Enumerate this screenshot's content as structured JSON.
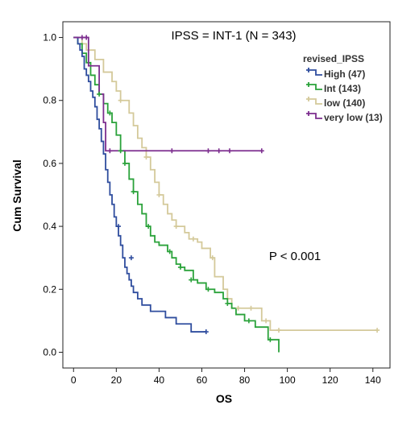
{
  "chart_data": {
    "type": "line",
    "title": "IPSS = INT-1 (N = 343)",
    "xlabel": "OS",
    "ylabel": "Cum Survival",
    "xlim": [
      -5,
      148
    ],
    "ylim": [
      -0.05,
      1.05
    ],
    "x_ticks": [
      "0",
      "20",
      "40",
      "60",
      "80",
      "100",
      "120",
      "140"
    ],
    "y_ticks": [
      "0.0",
      "0.2",
      "0.4",
      "0.6",
      "0.8",
      "1.0"
    ],
    "x_tick_values": [
      0,
      20,
      40,
      60,
      80,
      100,
      120,
      140
    ],
    "y_tick_values": [
      0.0,
      0.2,
      0.4,
      0.6,
      0.8,
      1.0
    ],
    "legend_title": "revised_IPSS",
    "legend_position": "top-right",
    "annotation": "P < 0.001",
    "grid": false,
    "series": [
      {
        "name": "High (47)",
        "color": "#2f4d9e",
        "points": [
          [
            0,
            1.0
          ],
          [
            2,
            0.98
          ],
          [
            3,
            0.96
          ],
          [
            4,
            0.94
          ],
          [
            5,
            0.9
          ],
          [
            6,
            0.88
          ],
          [
            7,
            0.86
          ],
          [
            8,
            0.83
          ],
          [
            9,
            0.81
          ],
          [
            10,
            0.78
          ],
          [
            11,
            0.74
          ],
          [
            12,
            0.71
          ],
          [
            13,
            0.67
          ],
          [
            14,
            0.63
          ],
          [
            15,
            0.58
          ],
          [
            16,
            0.54
          ],
          [
            17,
            0.5
          ],
          [
            18,
            0.47
          ],
          [
            19,
            0.43
          ],
          [
            20,
            0.4
          ],
          [
            21,
            0.37
          ],
          [
            22,
            0.34
          ],
          [
            23,
            0.3
          ],
          [
            24,
            0.27
          ],
          [
            25,
            0.25
          ],
          [
            26,
            0.23
          ],
          [
            27,
            0.21
          ],
          [
            28,
            0.19
          ],
          [
            30,
            0.17
          ],
          [
            32,
            0.15
          ],
          [
            34,
            0.15
          ],
          [
            36,
            0.13
          ],
          [
            38,
            0.13
          ],
          [
            42,
            0.13
          ],
          [
            43,
            0.11
          ],
          [
            47,
            0.11
          ],
          [
            48,
            0.09
          ],
          [
            52,
            0.09
          ],
          [
            55,
            0.065
          ],
          [
            62,
            0.065
          ]
        ],
        "censored": [
          [
            21,
            0.4
          ],
          [
            27,
            0.3
          ],
          [
            62,
            0.065
          ]
        ]
      },
      {
        "name": "Int (143)",
        "color": "#2aa23a",
        "points": [
          [
            0,
            1.0
          ],
          [
            2,
            0.98
          ],
          [
            4,
            0.95
          ],
          [
            6,
            0.92
          ],
          [
            8,
            0.88
          ],
          [
            10,
            0.85
          ],
          [
            12,
            0.82
          ],
          [
            14,
            0.79
          ],
          [
            16,
            0.76
          ],
          [
            18,
            0.73
          ],
          [
            20,
            0.69
          ],
          [
            22,
            0.64
          ],
          [
            24,
            0.6
          ],
          [
            26,
            0.55
          ],
          [
            28,
            0.51
          ],
          [
            30,
            0.47
          ],
          [
            32,
            0.44
          ],
          [
            34,
            0.4
          ],
          [
            36,
            0.37
          ],
          [
            38,
            0.35
          ],
          [
            40,
            0.34
          ],
          [
            44,
            0.32
          ],
          [
            46,
            0.3
          ],
          [
            48,
            0.28
          ],
          [
            50,
            0.27
          ],
          [
            52,
            0.26
          ],
          [
            56,
            0.23
          ],
          [
            58,
            0.22
          ],
          [
            62,
            0.2
          ],
          [
            66,
            0.19
          ],
          [
            70,
            0.17
          ],
          [
            72,
            0.155
          ],
          [
            74,
            0.14
          ],
          [
            76,
            0.12
          ],
          [
            80,
            0.1
          ],
          [
            85,
            0.08
          ],
          [
            91,
            0.04
          ],
          [
            96,
            0.04
          ],
          [
            96,
            0.0
          ]
        ],
        "censored": [
          [
            12,
            0.82
          ],
          [
            17,
            0.76
          ],
          [
            22,
            0.64
          ],
          [
            24,
            0.6
          ],
          [
            28,
            0.51
          ],
          [
            35,
            0.4
          ],
          [
            45,
            0.32
          ],
          [
            50,
            0.27
          ],
          [
            55,
            0.23
          ],
          [
            63,
            0.2
          ],
          [
            72,
            0.155
          ],
          [
            82,
            0.1
          ],
          [
            92,
            0.04
          ]
        ]
      },
      {
        "name": "low (140)",
        "color": "#d4c99a",
        "points": [
          [
            0,
            1.0
          ],
          [
            4,
            0.98
          ],
          [
            6,
            0.96
          ],
          [
            10,
            0.93
          ],
          [
            14,
            0.89
          ],
          [
            18,
            0.86
          ],
          [
            20,
            0.83
          ],
          [
            22,
            0.8
          ],
          [
            26,
            0.76
          ],
          [
            28,
            0.72
          ],
          [
            30,
            0.68
          ],
          [
            32,
            0.65
          ],
          [
            34,
            0.62
          ],
          [
            36,
            0.58
          ],
          [
            38,
            0.54
          ],
          [
            40,
            0.5
          ],
          [
            42,
            0.47
          ],
          [
            44,
            0.44
          ],
          [
            46,
            0.42
          ],
          [
            48,
            0.4
          ],
          [
            52,
            0.38
          ],
          [
            54,
            0.36
          ],
          [
            58,
            0.35
          ],
          [
            60,
            0.33
          ],
          [
            64,
            0.3
          ],
          [
            66,
            0.24
          ],
          [
            70,
            0.2
          ],
          [
            72,
            0.17
          ],
          [
            74,
            0.14
          ],
          [
            86,
            0.14
          ],
          [
            88,
            0.1
          ],
          [
            92,
            0.07
          ],
          [
            142,
            0.07
          ]
        ],
        "censored": [
          [
            22,
            0.8
          ],
          [
            34,
            0.62
          ],
          [
            40,
            0.5
          ],
          [
            48,
            0.4
          ],
          [
            56,
            0.36
          ],
          [
            65,
            0.3
          ],
          [
            77,
            0.14
          ],
          [
            83,
            0.14
          ],
          [
            90,
            0.1
          ],
          [
            96,
            0.07
          ],
          [
            142,
            0.07
          ]
        ]
      },
      {
        "name": "very low (13)",
        "color": "#7d2e8f",
        "points": [
          [
            0,
            1.0
          ],
          [
            7,
            1.0
          ],
          [
            7,
            0.91
          ],
          [
            12,
            0.91
          ],
          [
            12,
            0.82
          ],
          [
            14,
            0.82
          ],
          [
            14,
            0.73
          ],
          [
            15,
            0.73
          ],
          [
            15,
            0.64
          ],
          [
            88,
            0.64
          ]
        ],
        "censored": [
          [
            4,
            1.0
          ],
          [
            6,
            1.0
          ],
          [
            17,
            0.64
          ],
          [
            46,
            0.64
          ],
          [
            63,
            0.64
          ],
          [
            68,
            0.64
          ],
          [
            73,
            0.64
          ],
          [
            88,
            0.64
          ]
        ]
      }
    ]
  }
}
